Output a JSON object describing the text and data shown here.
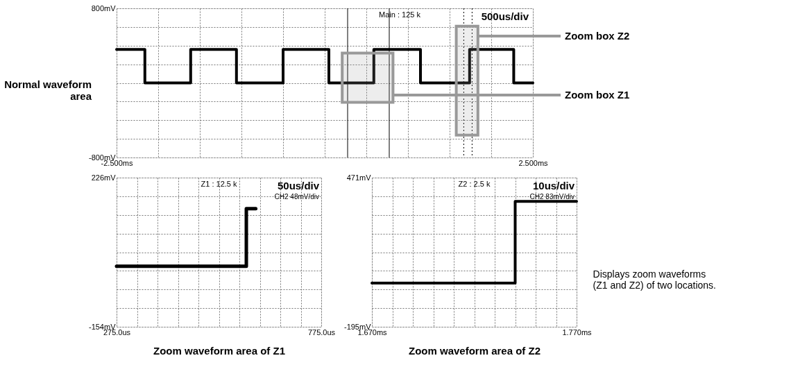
{
  "chart_data": [
    {
      "type": "line",
      "xlim": [
        -2.5,
        2.5
      ],
      "ylim": [
        -800,
        800
      ],
      "xticks": [
        {
          "value": -2.5,
          "label": "-2.500ms"
        },
        {
          "value": -2.0,
          "label": null
        },
        {
          "value": -1.5,
          "label": null
        },
        {
          "value": -1.0,
          "label": null
        },
        {
          "value": -0.5,
          "label": null
        },
        {
          "value": 0,
          "label": null
        },
        {
          "value": 0.5,
          "label": null
        },
        {
          "value": 1.0,
          "label": null
        },
        {
          "value": 1.5,
          "label": null
        },
        {
          "value": 2.0,
          "label": null
        },
        {
          "value": 2.5,
          "label": "2.500ms"
        }
      ],
      "yticks": [
        {
          "value": -800,
          "label": "-800mV"
        },
        {
          "value": -600,
          "label": null
        },
        {
          "value": -400,
          "label": null
        },
        {
          "value": -200,
          "label": null
        },
        {
          "value": 0,
          "label": null
        },
        {
          "value": 200,
          "label": null
        },
        {
          "value": 400,
          "label": null
        },
        {
          "value": 600,
          "label": null
        },
        {
          "value": 800,
          "label": "800mV"
        }
      ],
      "grid": true,
      "series": [
        {
          "color": "#000000",
          "x": [
            -2.5,
            -2.16,
            -2.16,
            -1.61,
            -1.61,
            -1.06,
            -1.06,
            -0.5,
            -0.5,
            0.05,
            0.05,
            0.59,
            0.59,
            1.15,
            1.15,
            1.74,
            1.74,
            2.27,
            2.27,
            2.5
          ],
          "values": [
            360,
            360,
            0,
            0,
            360,
            360,
            0,
            0,
            360,
            360,
            0,
            0,
            360,
            360,
            0,
            0,
            360,
            360,
            0,
            0
          ]
        }
      ],
      "ref_lines": [
        {
          "axis": "x",
          "value": 0.275,
          "color": "#000000",
          "line_style": "solid"
        },
        {
          "axis": "x",
          "value": 0.775,
          "color": "#000000",
          "line_style": "solid"
        },
        {
          "axis": "x",
          "value": 1.67,
          "color": "#000000",
          "line_style": "dotted"
        },
        {
          "axis": "x",
          "value": 1.77,
          "color": "#000000",
          "line_style": "dotted"
        }
      ],
      "bands": [
        {
          "axis": "x",
          "from": 0.21,
          "to": 0.82,
          "label": "Zoom box Z1",
          "color": "#999999"
        },
        {
          "axis": "x",
          "from": 1.58,
          "to": 1.84,
          "label": "Zoom box Z2",
          "color": "#999999"
        }
      ],
      "annotations": [
        "Main : 125 k",
        "500us/div",
        "Normal waveform area"
      ]
    },
    {
      "type": "line",
      "xlim": [
        275,
        775
      ],
      "ylim": [
        -154,
        226
      ],
      "xlabel": "Zoom waveform area of Z1",
      "xticks": [
        {
          "value": 275,
          "label": "275.0us"
        },
        {
          "value": 325,
          "label": null
        },
        {
          "value": 375,
          "label": null
        },
        {
          "value": 425,
          "label": null
        },
        {
          "value": 475,
          "label": null
        },
        {
          "value": 525,
          "label": null
        },
        {
          "value": 575,
          "label": null
        },
        {
          "value": 625,
          "label": null
        },
        {
          "value": 675,
          "label": null
        },
        {
          "value": 725,
          "label": null
        },
        {
          "value": 775,
          "label": "775.0us"
        }
      ],
      "yticks": [
        {
          "value": -154,
          "label": "-154mV"
        },
        {
          "value": -106.5,
          "label": null
        },
        {
          "value": -59,
          "label": null
        },
        {
          "value": -11.5,
          "label": null
        },
        {
          "value": 36,
          "label": null
        },
        {
          "value": 83.5,
          "label": null
        },
        {
          "value": 131,
          "label": null
        },
        {
          "value": 178.5,
          "label": null
        },
        {
          "value": 226,
          "label": "226mV"
        }
      ],
      "grid": true,
      "series": [
        {
          "color": "#000000",
          "x": [
            275,
            592,
            592,
            615
          ],
          "values": [
            0,
            0,
            147,
            147
          ]
        }
      ],
      "annotations": [
        "Z1 : 12.5 k",
        "50us/div",
        "CH2  48mV/div"
      ]
    },
    {
      "type": "line",
      "xlim": [
        1.67,
        1.77
      ],
      "ylim": [
        -195,
        471
      ],
      "xlabel": "Zoom waveform area of Z2",
      "xticks": [
        {
          "value": 1.67,
          "label": "1.670ms"
        },
        {
          "value": 1.68,
          "label": null
        },
        {
          "value": 1.69,
          "label": null
        },
        {
          "value": 1.7,
          "label": null
        },
        {
          "value": 1.71,
          "label": null
        },
        {
          "value": 1.72,
          "label": null
        },
        {
          "value": 1.73,
          "label": null
        },
        {
          "value": 1.74,
          "label": null
        },
        {
          "value": 1.75,
          "label": null
        },
        {
          "value": 1.76,
          "label": null
        },
        {
          "value": 1.77,
          "label": "1.770ms"
        }
      ],
      "yticks": [
        {
          "value": -195,
          "label": "-195mV"
        },
        {
          "value": -111.75,
          "label": null
        },
        {
          "value": -28.5,
          "label": null
        },
        {
          "value": 54.75,
          "label": null
        },
        {
          "value": 138,
          "label": null
        },
        {
          "value": 221.25,
          "label": null
        },
        {
          "value": 304.5,
          "label": null
        },
        {
          "value": 387.75,
          "label": null
        },
        {
          "value": 471,
          "label": "471mV"
        }
      ],
      "grid": true,
      "series": [
        {
          "color": "#000000",
          "x": [
            1.67,
            1.74,
            1.74,
            1.77
          ],
          "values": [
            0,
            0,
            365,
            365
          ]
        }
      ],
      "annotations": [
        "Z2 : 2.5 k",
        "10us/div",
        "CH2  83mV/div",
        "Displays zoom waveforms (Z1 and Z2) of two locations."
      ]
    }
  ]
}
